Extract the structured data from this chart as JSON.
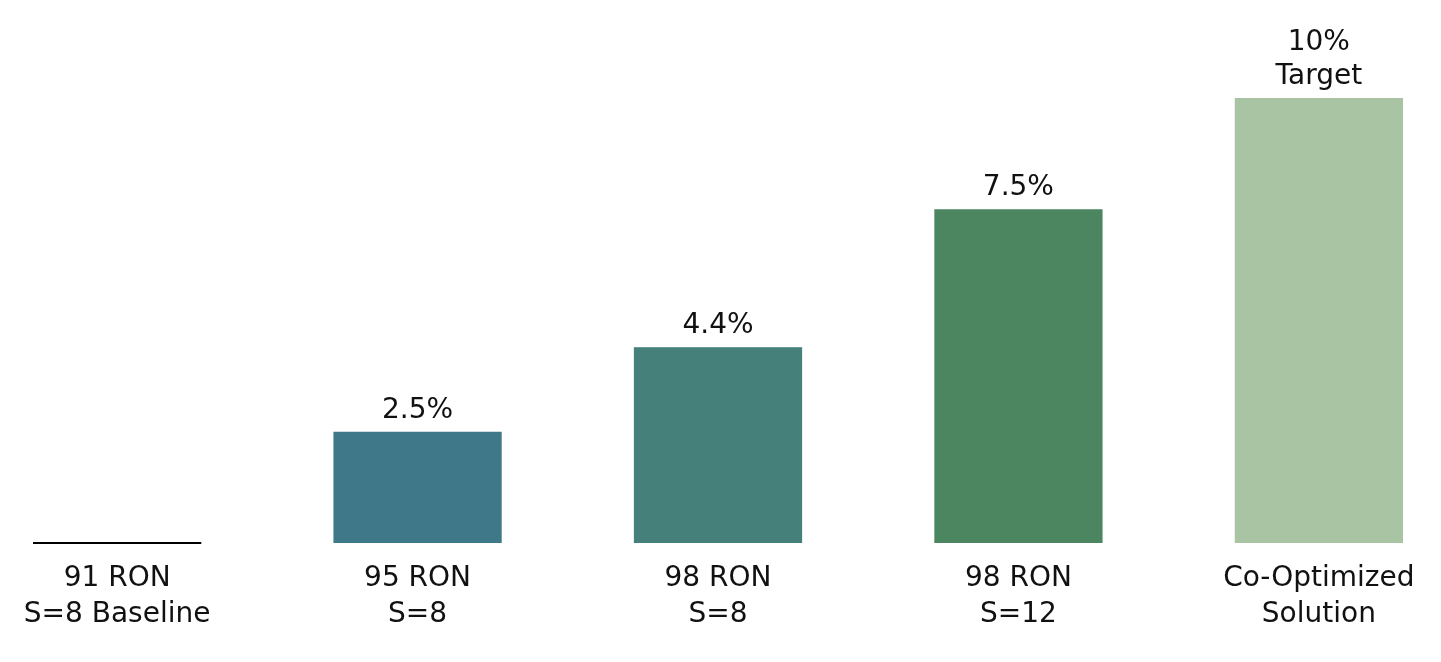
{
  "chart_data": {
    "type": "bar",
    "categories": [
      "91 RON\nS=8 Baseline",
      "95 RON\nS=8",
      "98 RON\nS=8",
      "98 RON\nS=12",
      "Co-Optimized\nSolution"
    ],
    "values": [
      0,
      2.5,
      4.4,
      7.5,
      10
    ],
    "colors": [
      "#000000",
      "#3f7888",
      "#45807a",
      "#4b8660",
      "#a9c4a2"
    ],
    "value_labels": [
      null,
      "2.5%",
      "4.4%",
      "7.5%",
      "10%\nTarget"
    ]
  }
}
